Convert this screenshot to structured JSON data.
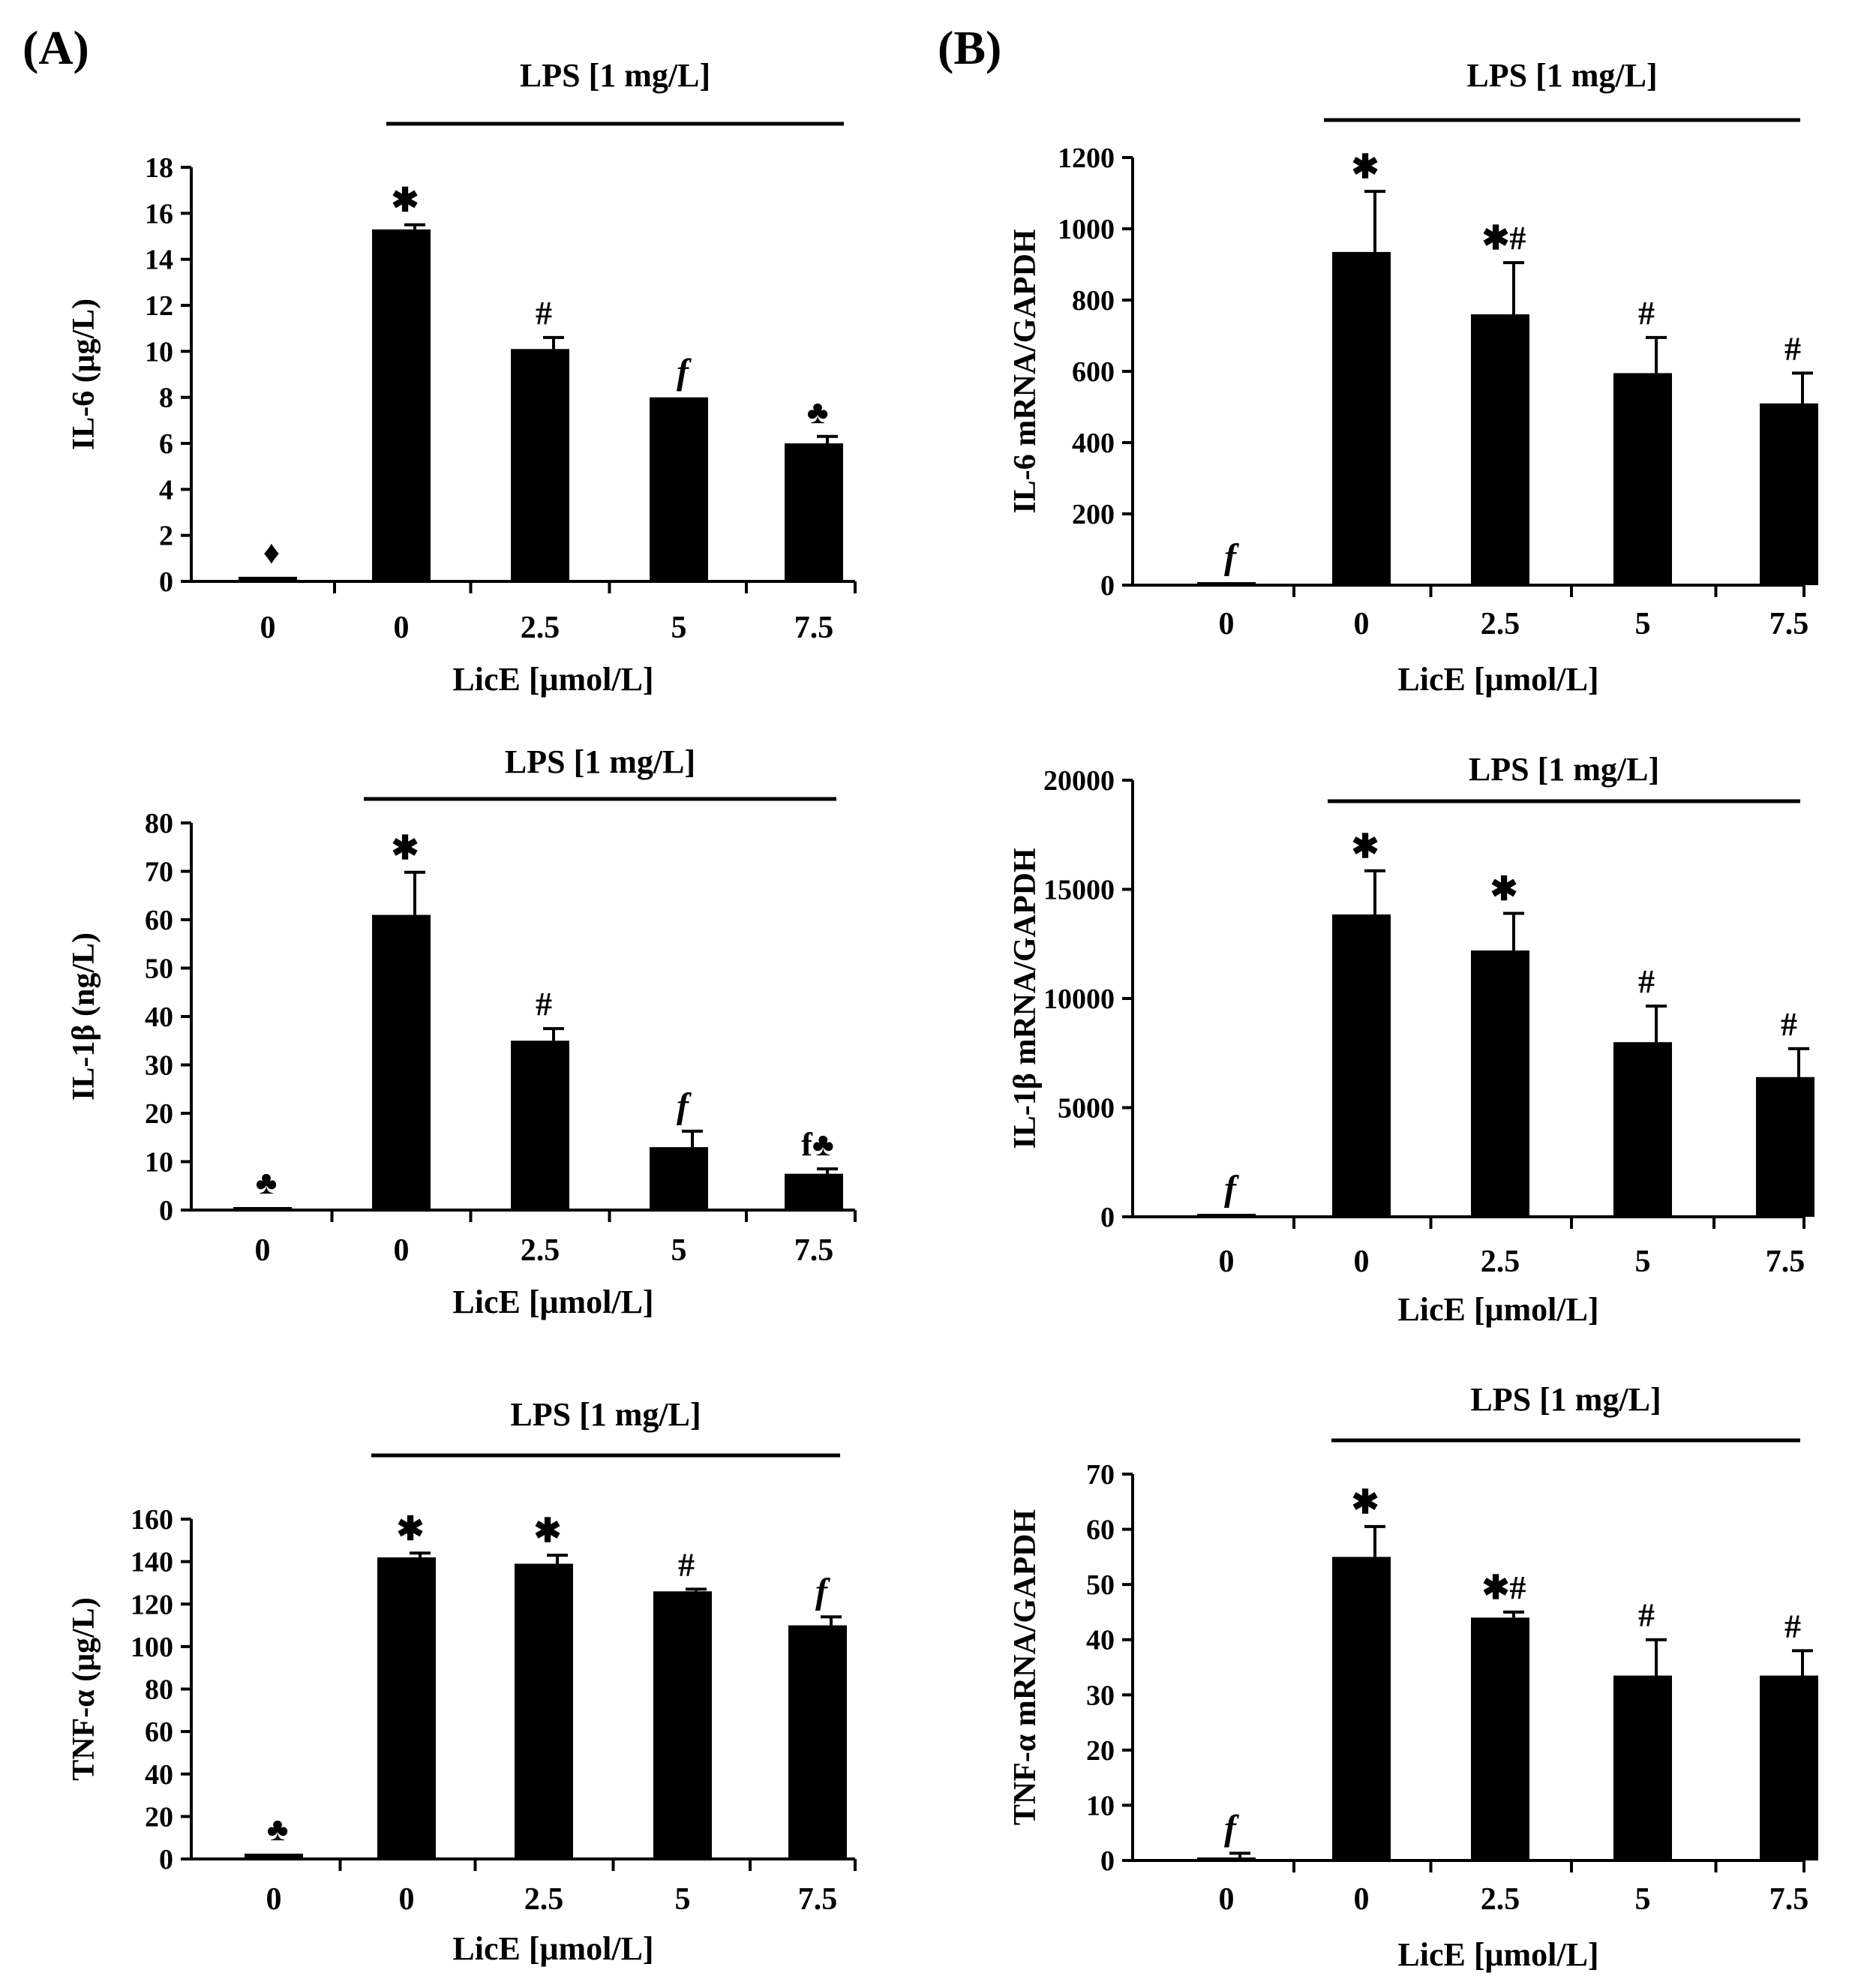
{
  "panels": [
    {
      "id": "A",
      "label": "(A)"
    },
    {
      "id": "B",
      "label": "(B)"
    }
  ],
  "chart_data": [
    {
      "id": "A1",
      "panel": "A",
      "type": "bar",
      "title": "LPS [1 mg/L]",
      "categories": [
        "0",
        "0",
        "2.5",
        "5",
        "7.5"
      ],
      "values": [
        0.2,
        15.3,
        10.1,
        8.0,
        6.0
      ],
      "errors": [
        0,
        0.2,
        0.5,
        0,
        0.3
      ],
      "ylabel": "IL-6 (μg/L)",
      "xlabel": "LicE [μmol/L]",
      "ylim": [
        0,
        18
      ],
      "yticks": [
        0,
        2,
        4,
        6,
        8,
        10,
        12,
        14,
        16,
        18
      ],
      "yticklabels": [
        "0",
        "2",
        "4",
        "6",
        "8",
        "10",
        "12",
        "14",
        "16",
        "18"
      ],
      "annotations": [
        "♦",
        "✱",
        "#",
        "f",
        "♣"
      ]
    },
    {
      "id": "A2",
      "panel": "A",
      "type": "bar",
      "title": "LPS [1 mg/L]",
      "categories": [
        "0",
        "0",
        "2.5",
        "5",
        "7.5"
      ],
      "values": [
        0,
        61,
        35,
        13,
        7.5
      ],
      "errors": [
        0,
        8.8,
        2.5,
        3.3,
        1.0
      ],
      "ylabel": "IL-1β (ng/L)",
      "xlabel": "LicE [μmol/L]",
      "ylim": [
        0,
        80
      ],
      "yticks": [
        0,
        10,
        20,
        30,
        40,
        50,
        60,
        70,
        80
      ],
      "yticklabels": [
        "0",
        "10",
        "20",
        "30",
        "40",
        "50",
        "60",
        "70",
        "80"
      ],
      "annotations": [
        "♣",
        "✱",
        "#",
        "f",
        "f♣"
      ]
    },
    {
      "id": "A3",
      "panel": "A",
      "type": "bar",
      "title": "LPS [1 mg/L]",
      "categories": [
        "0",
        "0",
        "2.5",
        "5",
        "7.5"
      ],
      "values": [
        2.5,
        142,
        139,
        126,
        110
      ],
      "errors": [
        0,
        2.0,
        4.0,
        1.0,
        4.0
      ],
      "ylabel": "TNF-α (μg/L)",
      "xlabel": "LicE [μmol/L]",
      "ylim": [
        0,
        160
      ],
      "yticks": [
        0,
        20,
        40,
        60,
        80,
        100,
        120,
        140,
        160
      ],
      "yticklabels": [
        "0",
        "20",
        "40",
        "60",
        "80",
        "100",
        "120",
        "140",
        "160"
      ],
      "annotations": [
        "♣",
        "✱",
        "✱",
        "#",
        "f"
      ]
    },
    {
      "id": "B1",
      "panel": "B",
      "type": "bar",
      "title": "LPS [1 mg/L]",
      "categories": [
        "0",
        "0",
        "2.5",
        "5",
        "7.5"
      ],
      "values": [
        0,
        935,
        760,
        595,
        510
      ],
      "errors": [
        0,
        170,
        145,
        100,
        85
      ],
      "ylabel": "IL-6 mRNA/GAPDH",
      "xlabel": "LicE [μmol/L]",
      "ylim": [
        0,
        1200
      ],
      "yticks": [
        0,
        200,
        400,
        600,
        800,
        1000,
        1200
      ],
      "yticklabels": [
        "0",
        "200",
        "400",
        "600",
        "800",
        "1000",
        "1200"
      ],
      "annotations": [
        "f",
        "✱",
        "✱#",
        "#",
        "#"
      ]
    },
    {
      "id": "B2",
      "panel": "B",
      "type": "bar",
      "title": "LPS [1 mg/L]",
      "categories": [
        "0",
        "0",
        "2.5",
        "5",
        "7.5"
      ],
      "values": [
        80,
        13850,
        12200,
        8000,
        6400
      ],
      "errors": [
        0,
        2000,
        1700,
        1650,
        1300
      ],
      "ylabel": "IL-1β mRNA/GAPDH",
      "xlabel": "LicE [μmol/L]",
      "ylim": [
        0,
        20000
      ],
      "yticks": [
        0,
        5000,
        10000,
        15000,
        20000
      ],
      "yticklabels": [
        "0",
        "5000",
        "10000",
        "15000",
        "20000"
      ],
      "annotations": [
        "f",
        "✱",
        "✱",
        "#",
        "#"
      ]
    },
    {
      "id": "B3",
      "panel": "B",
      "type": "bar",
      "title": "LPS [1 mg/L]",
      "categories": [
        "0",
        "0",
        "2.5",
        "5",
        "7.5"
      ],
      "values": [
        0.5,
        55,
        44,
        33.5,
        33.5
      ],
      "errors": [
        0.8,
        5.5,
        1.0,
        6.5,
        4.5
      ],
      "ylabel": "TNF-α mRNA/GAPDH",
      "xlabel": "LicE [μmol/L]",
      "ylim": [
        0,
        70
      ],
      "yticks": [
        0,
        10,
        20,
        30,
        40,
        50,
        60,
        70
      ],
      "yticklabels": [
        "0",
        "10",
        "20",
        "30",
        "40",
        "50",
        "60",
        "70"
      ],
      "annotations": [
        "f",
        "✱",
        "✱#",
        "#",
        "#"
      ]
    }
  ]
}
